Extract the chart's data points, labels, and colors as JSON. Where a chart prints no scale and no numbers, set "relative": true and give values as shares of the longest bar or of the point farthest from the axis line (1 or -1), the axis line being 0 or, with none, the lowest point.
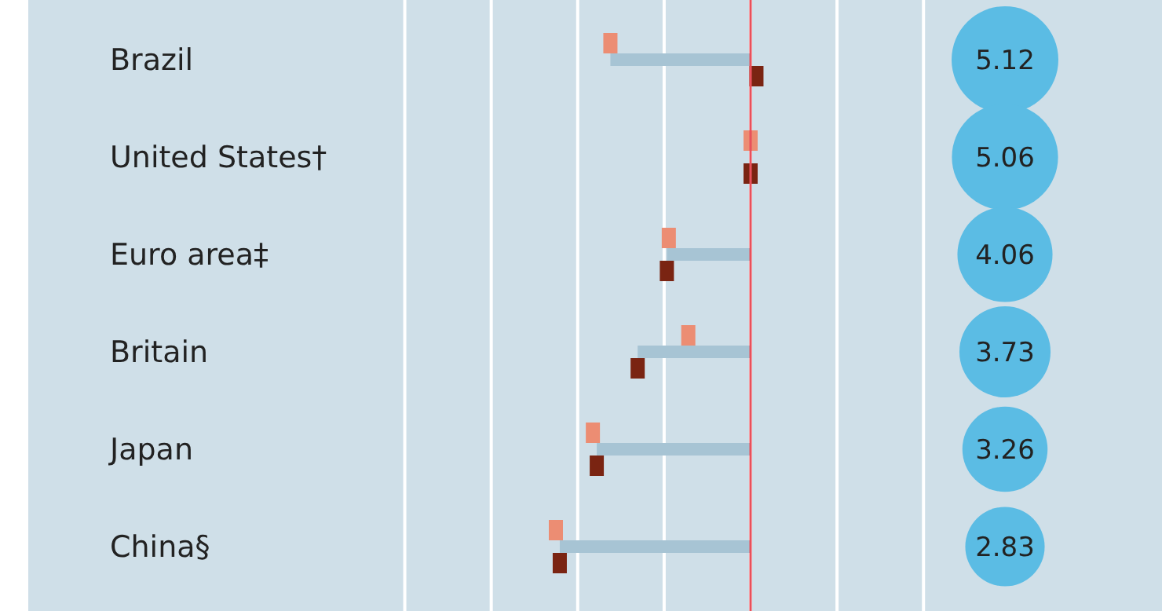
{
  "chart_data": [
    {
      "type": "bar",
      "orientation": "horizontal",
      "relative": true,
      "grid": true,
      "categories": [
        "Brazil",
        "United States†",
        "Euro area‡",
        "Britain",
        "Japan",
        "China§"
      ],
      "ref_lines": [
        {
          "axis": "x",
          "value": 0,
          "color": "#e8505b"
        }
      ],
      "series": [
        {
          "type": "bar",
          "color": "#a7c4d4",
          "values": [
            -0.72,
            0,
            -0.43,
            -0.58,
            -0.79,
            -0.98
          ]
        },
        {
          "type": "scatter",
          "marker": "square",
          "color": "#ec8d73",
          "values": [
            -0.72,
            0,
            -0.42,
            -0.32,
            -0.81,
            -1
          ]
        },
        {
          "type": "scatter",
          "marker": "square",
          "color": "#7a2412",
          "values": [
            0.03,
            0,
            -0.43,
            -0.58,
            -0.79,
            -0.98
          ]
        }
      ]
    },
    {
      "type": "other",
      "categories": [
        null,
        null,
        null,
        null,
        null,
        null
      ],
      "values": [
        5.12,
        5.06,
        4.06,
        3.73,
        3.26,
        2.83
      ],
      "color": "#5bbce4",
      "data_labels": true
    }
  ]
}
